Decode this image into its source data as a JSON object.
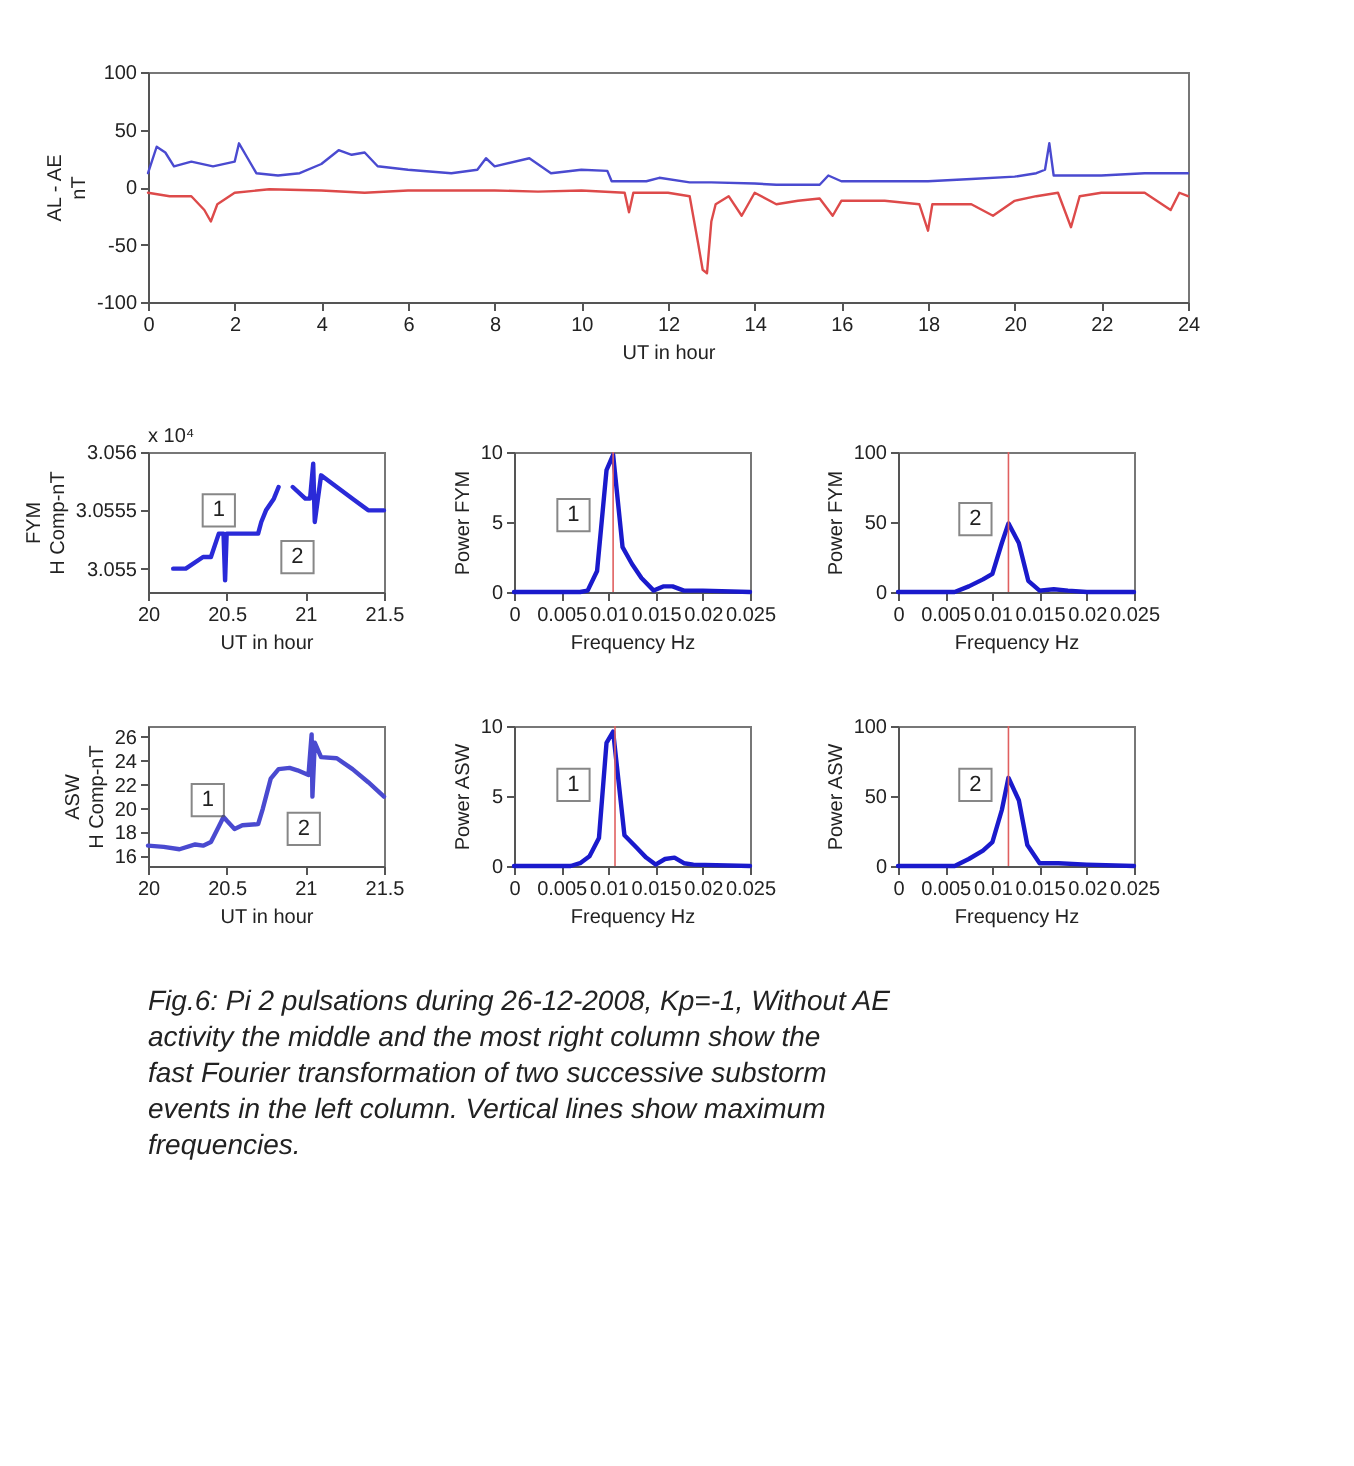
{
  "chart_data": [
    {
      "type": "line",
      "ylabel": "AL  -  AE\nnT",
      "xlabel": "UT in hour",
      "xlim": [
        0,
        24
      ],
      "xticks": [
        0,
        2,
        4,
        6,
        8,
        10,
        12,
        14,
        16,
        18,
        20,
        22,
        24
      ],
      "ylim": [
        -100,
        100
      ],
      "yticks": [
        -100,
        -50,
        0,
        50,
        100
      ],
      "grid": false,
      "series": [
        {
          "color": "#4a4ad0",
          "x": [
            0,
            0.2,
            0.4,
            0.6,
            1,
            1.5,
            2,
            2.1,
            2.3,
            2.5,
            3,
            3.5,
            4,
            4.4,
            4.7,
            5,
            5.3,
            6,
            7,
            7.6,
            7.8,
            8,
            8.8,
            9.3,
            10,
            10.6,
            10.7,
            11.5,
            11.8,
            12.5,
            13,
            14,
            14.5,
            15.5,
            15.7,
            16,
            17,
            18,
            19,
            20,
            20.5,
            20.7,
            20.8,
            20.9,
            22,
            23,
            24
          ],
          "values": [
            12,
            35,
            30,
            18,
            22,
            18,
            22,
            38,
            25,
            12,
            10,
            12,
            20,
            32,
            28,
            30,
            18,
            15,
            12,
            15,
            25,
            18,
            25,
            12,
            15,
            14,
            5,
            5,
            8,
            4,
            4,
            3,
            2,
            2,
            10,
            5,
            5,
            5,
            7,
            9,
            12,
            15,
            38,
            10,
            10,
            12,
            12
          ]
        },
        {
          "color": "#dd4a4a",
          "x": [
            0,
            0.5,
            1,
            1.3,
            1.45,
            1.6,
            2,
            2.8,
            4,
            5,
            6,
            7,
            8,
            9,
            10,
            11,
            11.1,
            11.2,
            12,
            12.5,
            12.7,
            12.8,
            12.9,
            13,
            13.1,
            13.4,
            13.7,
            14,
            14.5,
            15,
            15.5,
            15.8,
            16,
            17,
            17.8,
            18,
            18.1,
            18.5,
            19,
            19.5,
            20,
            20.5,
            21,
            21.3,
            21.5,
            22,
            23,
            23.6,
            23.8,
            24
          ],
          "values": [
            -5,
            -8,
            -8,
            -20,
            -30,
            -15,
            -5,
            -2,
            -3,
            -5,
            -3,
            -3,
            -3,
            -4,
            -3,
            -5,
            -22,
            -5,
            -5,
            -8,
            -50,
            -72,
            -75,
            -30,
            -15,
            -8,
            -25,
            -5,
            -15,
            -12,
            -10,
            -25,
            -12,
            -12,
            -15,
            -38,
            -15,
            -15,
            -15,
            -25,
            -12,
            -8,
            -5,
            -35,
            -8,
            -5,
            -5,
            -20,
            -5,
            -8
          ]
        }
      ]
    },
    {
      "type": "line",
      "ylabel": "FYM\nH Comp-nT",
      "xlabel": "UT in hour",
      "xlim": [
        20,
        21.5
      ],
      "xticks": [
        20,
        20.5,
        21,
        21.5
      ],
      "ylim": [
        3.0548,
        3.056
      ],
      "yticks": [
        3.055,
        3.0555,
        3.056
      ],
      "grid": false,
      "annotations": [
        "x 10⁴",
        {
          "text": "1",
          "x": 20.45,
          "y": 3.0555
        },
        {
          "text": "2",
          "x": 20.95,
          "y": 3.0551
        }
      ],
      "series": [
        {
          "color": "#2a2ad8",
          "x": [
            20.16,
            20.2,
            20.24,
            20.35,
            20.4,
            20.45,
            20.48,
            20.49,
            20.5,
            20.55,
            20.7,
            20.72,
            20.75,
            20.8,
            20.83,
            20.88,
            20.92,
            21.0,
            21.03,
            21.05,
            21.06,
            21.1,
            21.2,
            21.3,
            21.4,
            21.5
          ],
          "values": [
            3.055,
            3.055,
            3.055,
            3.0551,
            3.0551,
            3.0553,
            3.0553,
            3.0549,
            3.0553,
            3.0553,
            3.0553,
            3.0554,
            3.0555,
            3.0556,
            3.0557,
            null,
            3.0557,
            3.0556,
            3.0556,
            3.0559,
            3.0554,
            3.0558,
            3.0557,
            3.0556,
            3.0555,
            3.0555
          ]
        }
      ]
    },
    {
      "type": "line",
      "ylabel": "Power FYM",
      "xlabel": "Frequency Hz",
      "xlim": [
        0,
        0.025
      ],
      "xticks": [
        0,
        0.005,
        0.01,
        0.015,
        0.02,
        0.025
      ],
      "ylim": [
        0,
        10
      ],
      "yticks": [
        0,
        5,
        10
      ],
      "grid": false,
      "annotations": [
        {
          "text": "1",
          "x": 0.0063,
          "y": 5.5
        }
      ],
      "ref_lines": [
        {
          "axis": "x",
          "value": 0.0105,
          "color": "#e06060"
        }
      ],
      "series": [
        {
          "color": "#1a1acc",
          "x": [
            0,
            0.007,
            0.0078,
            0.0088,
            0.0098,
            0.0105,
            0.0115,
            0.0125,
            0.0135,
            0.0148,
            0.0158,
            0.0168,
            0.018,
            0.02,
            0.025
          ],
          "values": [
            0,
            0,
            0.1,
            1.5,
            8.7,
            9.8,
            3.2,
            2.0,
            1.0,
            0.1,
            0.4,
            0.4,
            0.1,
            0.1,
            0
          ]
        }
      ]
    },
    {
      "type": "line",
      "ylabel": "Power FYM",
      "xlabel": "Frequency Hz",
      "xlim": [
        0,
        0.025
      ],
      "xticks": [
        0,
        0.005,
        0.01,
        0.015,
        0.02,
        0.025
      ],
      "ylim": [
        0,
        100
      ],
      "yticks": [
        0,
        50,
        100
      ],
      "grid": false,
      "annotations": [
        {
          "text": "2",
          "x": 0.0082,
          "y": 52
        }
      ],
      "ref_lines": [
        {
          "axis": "x",
          "value": 0.0117,
          "color": "#e06060"
        }
      ],
      "series": [
        {
          "color": "#1a1acc",
          "x": [
            0,
            0.006,
            0.0075,
            0.009,
            0.01,
            0.011,
            0.0117,
            0.0128,
            0.0138,
            0.015,
            0.0165,
            0.018,
            0.02,
            0.025
          ],
          "values": [
            0,
            0,
            4,
            9,
            13,
            35,
            49,
            35,
            8,
            1,
            2,
            1,
            0,
            0
          ]
        }
      ]
    },
    {
      "type": "line",
      "ylabel": "ASW\nH Comp-nT",
      "xlabel": "UT in hour",
      "xlim": [
        20,
        21.5
      ],
      "xticks": [
        20,
        20.5,
        21,
        21.5
      ],
      "ylim": [
        15.2,
        26.9
      ],
      "yticks": [
        16,
        18,
        20,
        22,
        24,
        26
      ],
      "grid": false,
      "annotations": [
        {
          "text": "1",
          "x": 20.38,
          "y": 20.7
        },
        {
          "text": "2",
          "x": 20.99,
          "y": 18.3
        }
      ],
      "series": [
        {
          "color": "#4a4ad0",
          "x": [
            20,
            20.1,
            20.2,
            20.3,
            20.35,
            20.4,
            20.45,
            20.48,
            20.5,
            20.55,
            20.6,
            20.7,
            20.73,
            20.78,
            20.83,
            20.9,
            20.95,
            21.02,
            21.04,
            21.045,
            21.06,
            21.1,
            21.2,
            21.3,
            21.4,
            21.5
          ],
          "values": [
            16.9,
            16.8,
            16.6,
            17.0,
            16.9,
            17.2,
            18.5,
            19.3,
            19.0,
            18.3,
            18.6,
            18.7,
            20,
            22.5,
            23.3,
            23.4,
            23.2,
            22.8,
            26.2,
            21,
            25.5,
            24.3,
            24.2,
            23.3,
            22.2,
            21
          ]
        }
      ]
    },
    {
      "type": "line",
      "ylabel": "Power ASW",
      "xlabel": "Frequency Hz",
      "xlim": [
        0,
        0.025
      ],
      "xticks": [
        0,
        0.005,
        0.01,
        0.015,
        0.02,
        0.025
      ],
      "ylim": [
        0,
        10
      ],
      "yticks": [
        0,
        5,
        10
      ],
      "grid": false,
      "annotations": [
        {
          "text": "1",
          "x": 0.0063,
          "y": 5.8
        }
      ],
      "ref_lines": [
        {
          "axis": "x",
          "value": 0.0107,
          "color": "#e06060"
        }
      ],
      "series": [
        {
          "color": "#1a1acc",
          "x": [
            0,
            0.006,
            0.007,
            0.008,
            0.009,
            0.0098,
            0.0105,
            0.0117,
            0.013,
            0.014,
            0.015,
            0.016,
            0.017,
            0.018,
            0.019,
            0.025
          ],
          "values": [
            0,
            0,
            0.2,
            0.7,
            2,
            8.8,
            9.6,
            2.2,
            1.3,
            0.6,
            0.1,
            0.5,
            0.6,
            0.2,
            0.1,
            0
          ]
        }
      ]
    },
    {
      "type": "line",
      "ylabel": "Power ASW",
      "xlabel": "Frequency Hz",
      "xlim": [
        0,
        0.025
      ],
      "xticks": [
        0,
        0.005,
        0.01,
        0.015,
        0.02,
        0.025
      ],
      "ylim": [
        0,
        100
      ],
      "yticks": [
        0,
        50,
        100
      ],
      "grid": false,
      "annotations": [
        {
          "text": "2",
          "x": 0.0082,
          "y": 58
        }
      ],
      "ref_lines": [
        {
          "axis": "x",
          "value": 0.0117,
          "color": "#e06060"
        }
      ],
      "series": [
        {
          "color": "#1a1acc",
          "x": [
            0,
            0.006,
            0.0075,
            0.009,
            0.01,
            0.011,
            0.0117,
            0.0128,
            0.0137,
            0.015,
            0.017,
            0.02,
            0.025
          ],
          "values": [
            0,
            0,
            5,
            11,
            17,
            40,
            63,
            47,
            15,
            2,
            2,
            1,
            0
          ]
        }
      ]
    },
    {
      "type": "other",
      "annotations": [
        "Fig.6: Pi 2 pulsations during 26-12-2008, Kp=-1, Without AE\nactivity the middle and the  most right column show the\nfast Fourier transformation of two successive substorm\nevents in the left column. Vertical lines show maximum\nfrequencies."
      ]
    }
  ]
}
